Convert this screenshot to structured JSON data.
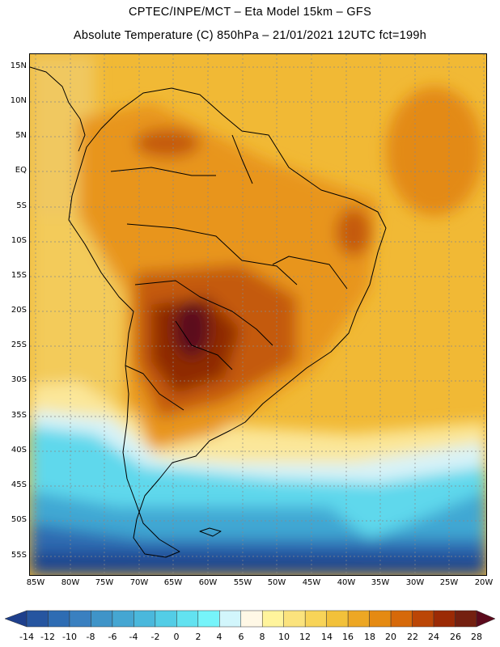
{
  "header": {
    "line1": "CPTEC/INPE/MCT –  Eta Model 15km – GFS",
    "line2": "Absolute Temperature (C) 850hPa – 21/01/2021 12UTC fct=199h"
  },
  "map": {
    "latitude_labels": [
      "15N",
      "10N",
      "5N",
      "EQ",
      "5S",
      "10S",
      "15S",
      "20S",
      "25S",
      "30S",
      "35S",
      "40S",
      "45S",
      "50S",
      "55S"
    ],
    "longitude_labels": [
      "85W",
      "80W",
      "75W",
      "70W",
      "65W",
      "60W",
      "55W",
      "50W",
      "45W",
      "40W",
      "35W",
      "30W",
      "25W",
      "20W"
    ]
  },
  "colorbar": {
    "labels": [
      "-14",
      "-12",
      "-10",
      "-8",
      "-6",
      "-4",
      "-2",
      "0",
      "2",
      "4",
      "6",
      "8",
      "10",
      "12",
      "14",
      "16",
      "18",
      "20",
      "22",
      "24",
      "26",
      "28"
    ],
    "colors": [
      "#1e3f8c",
      "#2655a0",
      "#2e6cb3",
      "#3a80c0",
      "#3f94c8",
      "#45a6d2",
      "#4ab8dc",
      "#53cde6",
      "#62e2f0",
      "#76f4fa",
      "#d2f6fc",
      "#fff8e6",
      "#fff49c",
      "#fbe37d",
      "#f8d458",
      "#f2c13a",
      "#eda724",
      "#e58a12",
      "#d6690a",
      "#bb4606",
      "#9b2a05",
      "#742010",
      "#5c0a1c"
    ]
  }
}
